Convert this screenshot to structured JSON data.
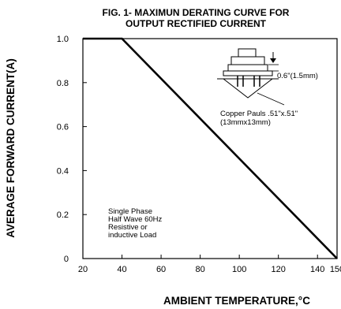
{
  "chart_data": {
    "type": "line",
    "title": "FIG. 1- MAXIMUN DERATING CURVE FOR",
    "subtitle": "OUTPUT RECTIFIED CURRENT",
    "xlabel": "AMBIENT TEMPERATURE,°C",
    "ylabel": "AVERAGE FORWARD CURRENT(A)",
    "xlim": [
      20,
      150
    ],
    "ylim": [
      0,
      1.0
    ],
    "x_ticks": [
      "20",
      "40",
      "60",
      "80",
      "100",
      "120",
      "140",
      "150"
    ],
    "y_ticks": [
      "0",
      "0.2",
      "0.4",
      "0.6",
      "0.8",
      "1.0"
    ],
    "grid": false,
    "series": [
      {
        "x": [
          20,
          40,
          150
        ],
        "y": [
          1.0,
          1.0,
          0
        ]
      }
    ],
    "annotations": {
      "conditions": [
        "Single Phase",
        "Half Wave 60Hz",
        "Resistive or",
        "inductive Load"
      ],
      "dimension": "0.6\"(1.5mm)",
      "copper": [
        "Copper Pauls .51\"x.51\"",
        "(13mmx13mm)"
      ]
    }
  }
}
